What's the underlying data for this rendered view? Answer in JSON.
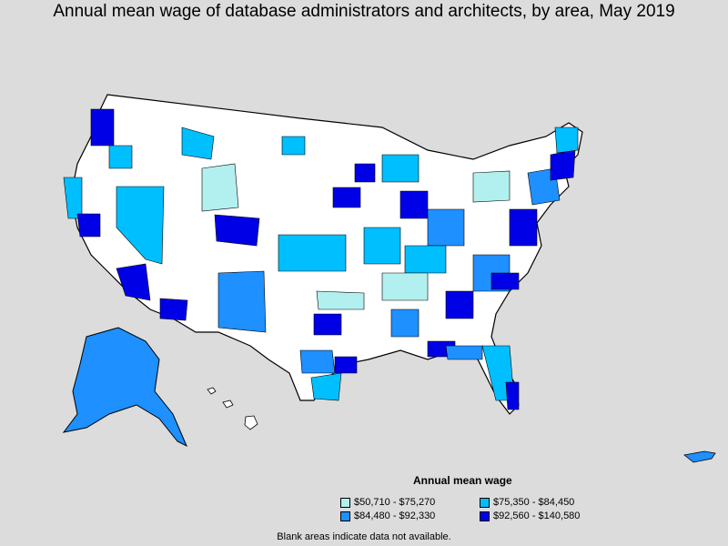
{
  "title": "Annual mean wage of database administrators and architects, by area, May 2019",
  "legend": {
    "title": "Annual mean wage",
    "items": [
      {
        "label": "$50,710 - $75,270",
        "color": "#b2f0f0"
      },
      {
        "label": "$75,350 - $84,450",
        "color": "#00bfff"
      },
      {
        "label": "$84,480 - $92,330",
        "color": "#1e90ff"
      },
      {
        "label": "$92,560 - $140,580",
        "color": "#0000e6"
      }
    ]
  },
  "footnote": "Blank areas indicate data not available.",
  "colors": {
    "background": "#dcdcdc",
    "blank_area": "#ffffff",
    "outline": "#000000"
  }
}
